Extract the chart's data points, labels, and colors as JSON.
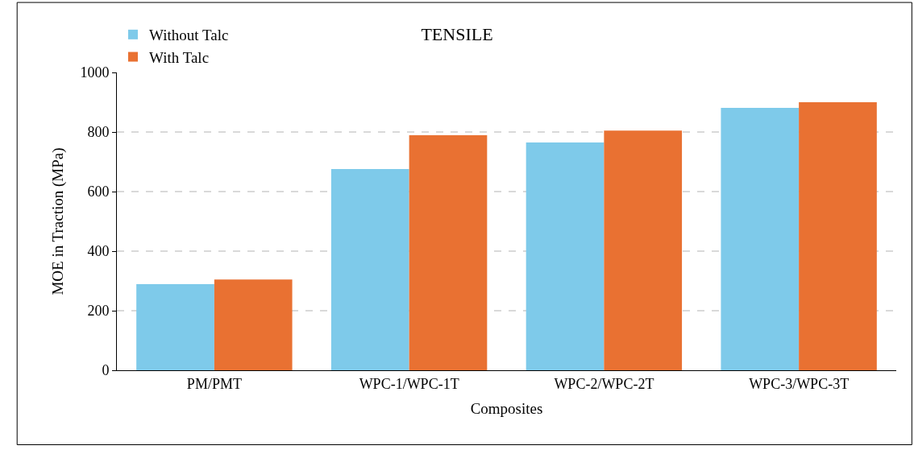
{
  "chart_data": {
    "type": "bar",
    "title": "TENSILE",
    "xlabel": "Composites",
    "ylabel": "MOE in Traction (MPa)",
    "categories": [
      "PM/PMT",
      "WPC-1/WPC-1T",
      "WPC-2/WPC-2T",
      "WPC-3/WPC-3T"
    ],
    "series": [
      {
        "name": "Without Talc",
        "color": "#7ecaea",
        "values": [
          289,
          676,
          765,
          881
        ]
      },
      {
        "name": "With Talc",
        "color": "#e97132",
        "values": [
          305,
          789,
          805,
          900
        ]
      }
    ],
    "ylim": [
      0,
      1000
    ],
    "yticks": [
      0,
      200,
      400,
      600,
      800,
      1000
    ],
    "grid": "y",
    "legend": "top left"
  }
}
